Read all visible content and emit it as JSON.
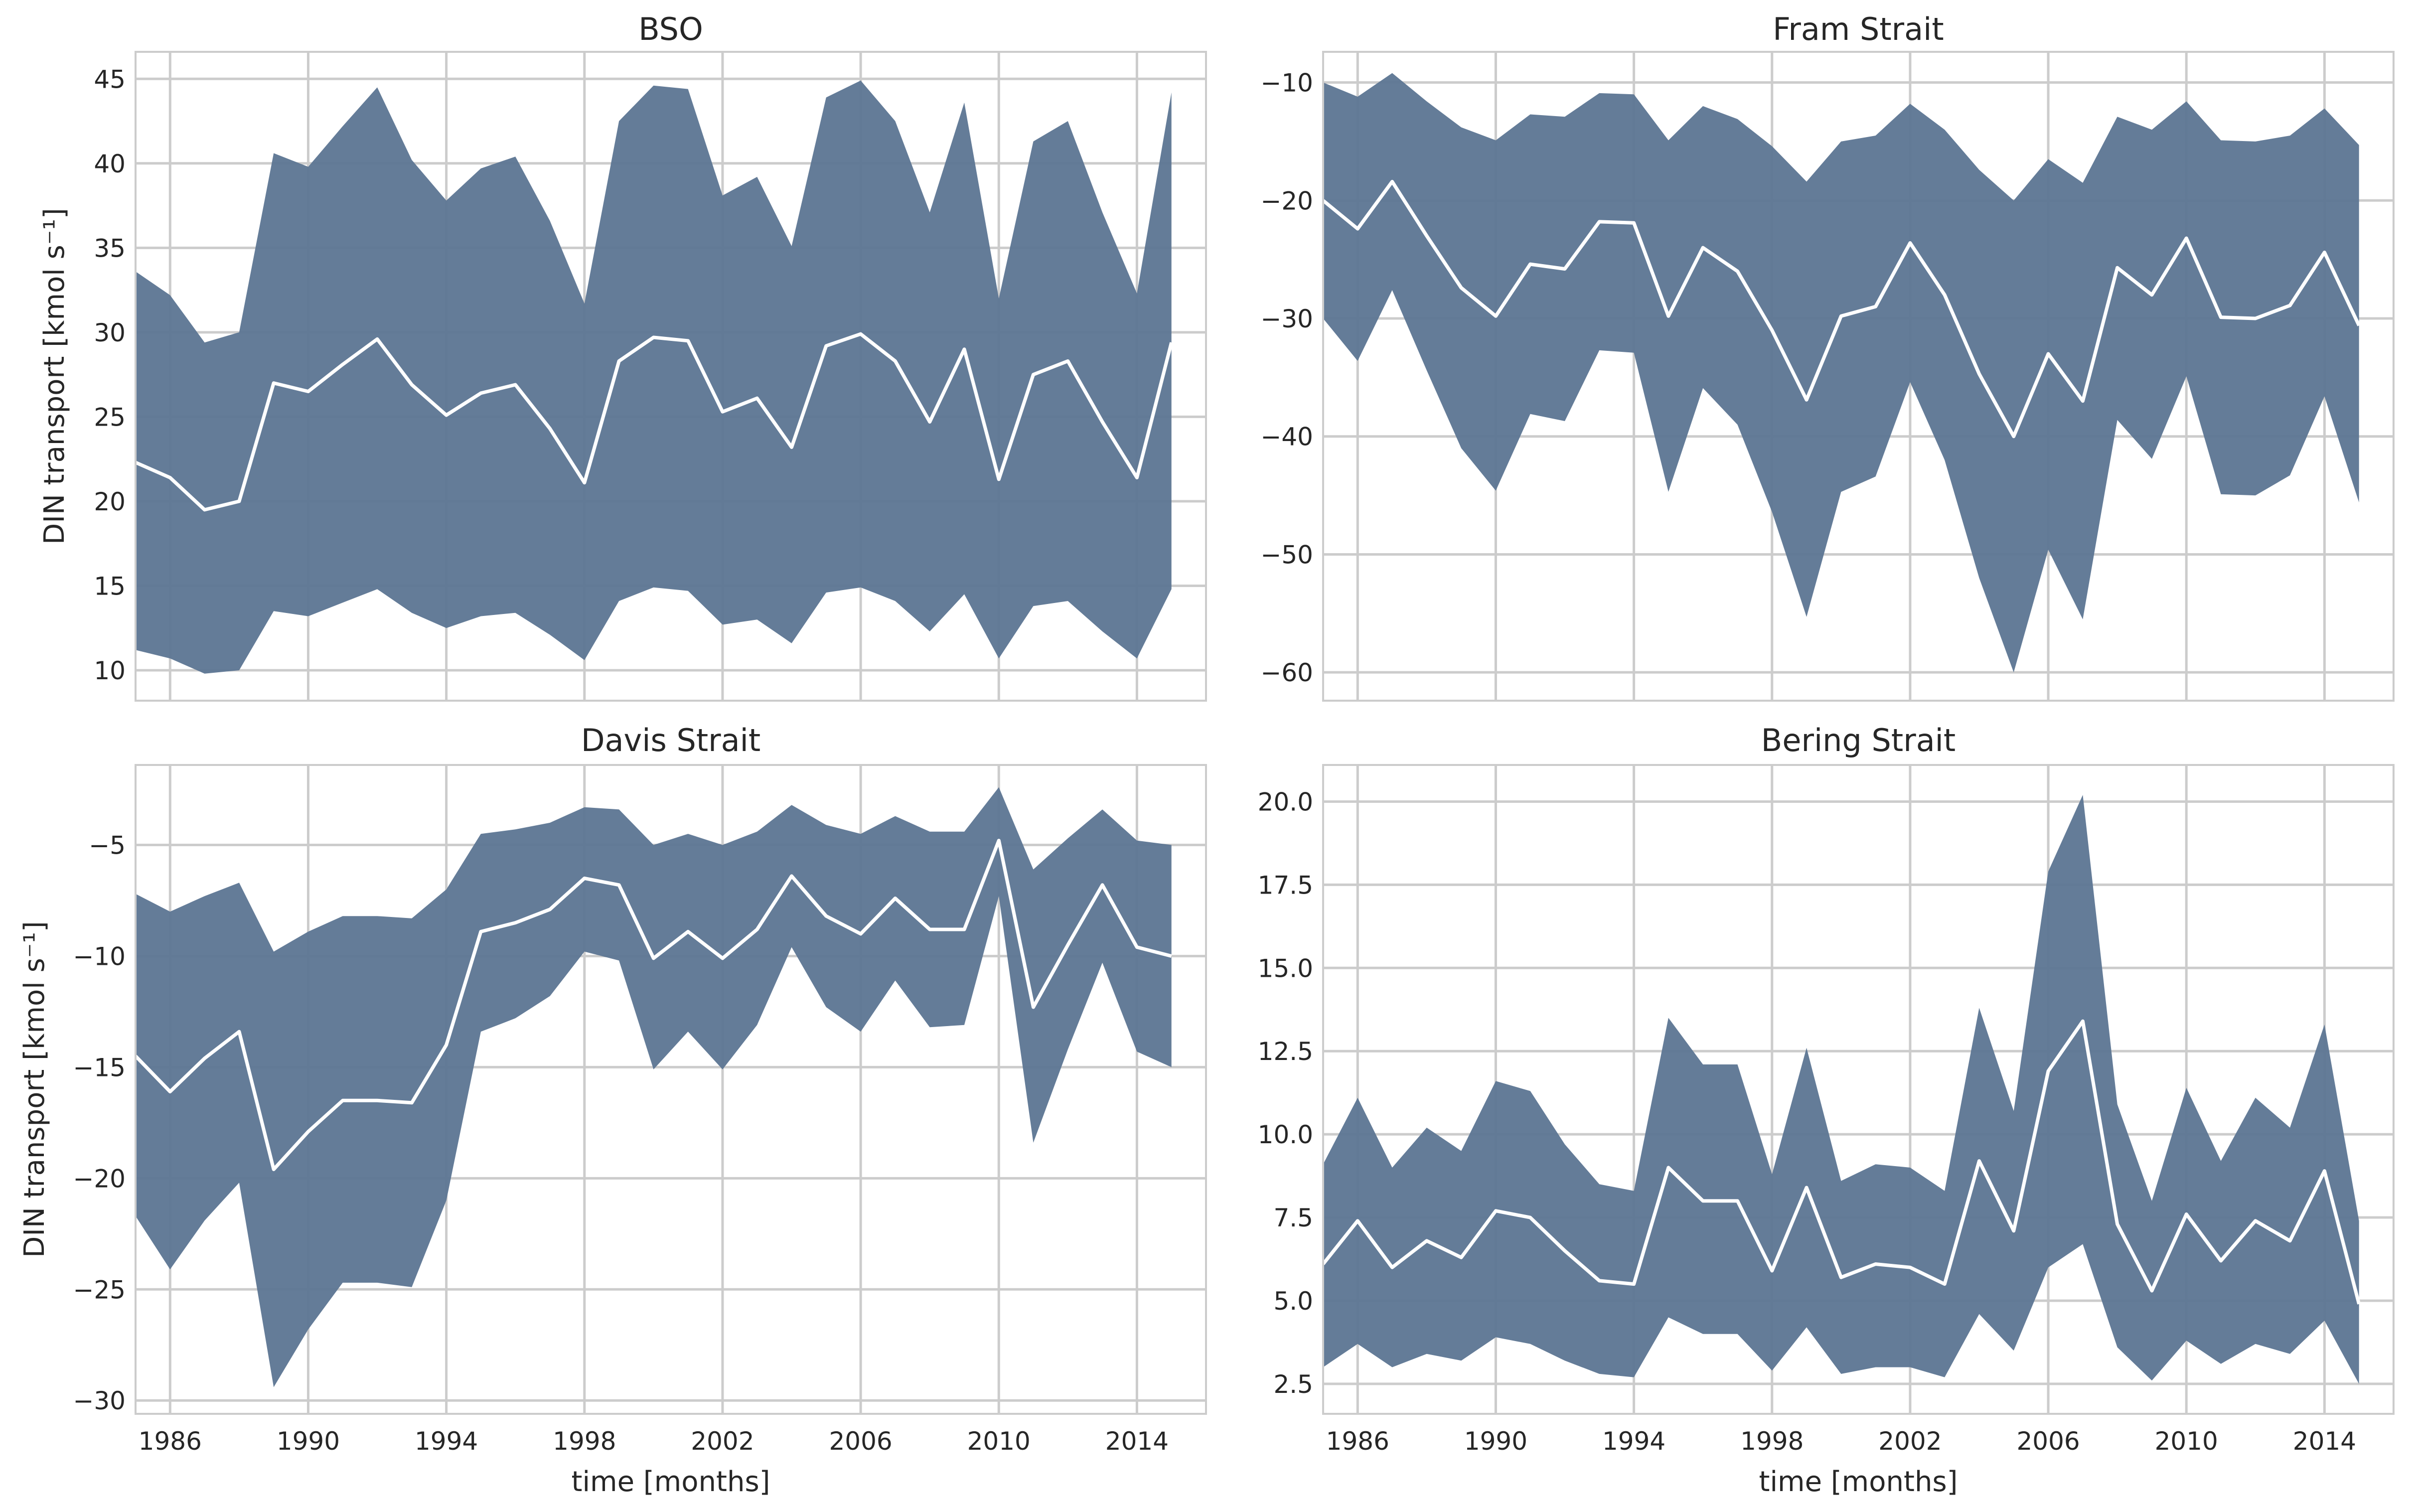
{
  "figure": {
    "background_color": "#ffffff",
    "panel_background_color": "#ffffff",
    "grid_color": "#cccccc",
    "band_color": "#5c7592",
    "mean_line_color": "#ffffff"
  },
  "chart_data": [
    {
      "type": "area",
      "title": "BSO",
      "xlabel": "",
      "ylabel": "DIN transport [kmol s⁻¹]",
      "grid": true,
      "xlim": [
        1985,
        2016
      ],
      "ylim": [
        8.2,
        46.6
      ],
      "xticks": [
        1986,
        1990,
        1994,
        1998,
        2002,
        2006,
        2010,
        2014
      ],
      "yticks": [
        10,
        15,
        20,
        25,
        30,
        35,
        40,
        45
      ],
      "ytick_labels": [
        "10",
        "15",
        "20",
        "25",
        "30",
        "35",
        "40",
        "45"
      ],
      "x": [
        1985,
        1986,
        1987,
        1988,
        1989,
        1990,
        1991,
        1992,
        1993,
        1994,
        1995,
        1996,
        1997,
        1998,
        1999,
        2000,
        2001,
        2002,
        2003,
        2004,
        2005,
        2006,
        2007,
        2008,
        2009,
        2010,
        2011,
        2012,
        2013,
        2014,
        2015
      ],
      "series": [
        {
          "role": "upper",
          "values": [
            33.6,
            32.2,
            29.4,
            30.0,
            40.6,
            39.8,
            42.2,
            44.5,
            40.2,
            37.8,
            39.7,
            40.4,
            36.6,
            31.7,
            42.5,
            44.6,
            44.4,
            38.1,
            39.2,
            35.1,
            43.9,
            44.9,
            42.5,
            37.1,
            43.6,
            32.0,
            41.3,
            42.5,
            37.1,
            32.3,
            44.2
          ]
        },
        {
          "role": "mean",
          "values": [
            22.3,
            21.4,
            19.5,
            20.0,
            27.0,
            26.5,
            28.1,
            29.6,
            26.9,
            25.1,
            26.4,
            26.9,
            24.3,
            21.1,
            28.3,
            29.7,
            29.5,
            25.3,
            26.1,
            23.2,
            29.2,
            29.9,
            28.3,
            24.7,
            29.0,
            21.3,
            27.5,
            28.3,
            24.7,
            21.4,
            29.4
          ]
        },
        {
          "role": "lower",
          "values": [
            11.2,
            10.7,
            9.8,
            10.0,
            13.5,
            13.2,
            14.0,
            14.8,
            13.4,
            12.5,
            13.2,
            13.4,
            12.1,
            10.6,
            14.1,
            14.9,
            14.7,
            12.7,
            13.0,
            11.6,
            14.6,
            14.9,
            14.1,
            12.3,
            14.5,
            10.7,
            13.8,
            14.1,
            12.3,
            10.7,
            14.8
          ]
        }
      ]
    },
    {
      "type": "area",
      "title": "Fram Strait",
      "xlabel": "",
      "ylabel": "",
      "grid": true,
      "xlim": [
        1985,
        2016
      ],
      "ylim": [
        -62.4,
        -7.4
      ],
      "xticks": [
        1986,
        1990,
        1994,
        1998,
        2002,
        2006,
        2010,
        2014
      ],
      "yticks": [
        -60,
        -50,
        -40,
        -30,
        -20,
        -10
      ],
      "ytick_labels": [
        "−60",
        "−50",
        "−40",
        "−30",
        "−20",
        "−10"
      ],
      "x": [
        1985,
        1986,
        1987,
        1988,
        1989,
        1990,
        1991,
        1992,
        1993,
        1994,
        1995,
        1996,
        1997,
        1998,
        1999,
        2000,
        2001,
        2002,
        2003,
        2004,
        2005,
        2006,
        2007,
        2008,
        2009,
        2010,
        2011,
        2012,
        2013,
        2014,
        2015
      ],
      "series": [
        {
          "role": "upper",
          "values": [
            -10.0,
            -11.2,
            -9.2,
            -11.6,
            -13.8,
            -14.9,
            -12.7,
            -12.9,
            -10.9,
            -11.0,
            -14.9,
            -12.0,
            -13.1,
            -15.4,
            -18.4,
            -15.0,
            -14.5,
            -11.8,
            -14.0,
            -17.4,
            -20.0,
            -16.5,
            -18.5,
            -12.9,
            -14.0,
            -11.6,
            -14.9,
            -15.0,
            -14.5,
            -12.2,
            -15.3
          ]
        },
        {
          "role": "mean",
          "values": [
            -20.0,
            -22.4,
            -18.4,
            -23.0,
            -27.4,
            -29.8,
            -25.4,
            -25.8,
            -21.8,
            -21.9,
            -29.8,
            -24.0,
            -26.0,
            -31.0,
            -36.9,
            -29.8,
            -29.0,
            -23.6,
            -28.0,
            -34.7,
            -40.0,
            -33.0,
            -37.0,
            -25.7,
            -28.0,
            -23.2,
            -29.9,
            -30.0,
            -28.9,
            -24.4,
            -30.6
          ]
        },
        {
          "role": "lower",
          "values": [
            -30.0,
            -33.6,
            -27.6,
            -34.4,
            -41.0,
            -44.6,
            -38.1,
            -38.7,
            -32.7,
            -32.9,
            -44.7,
            -35.9,
            -39.0,
            -46.4,
            -55.3,
            -44.7,
            -43.4,
            -35.4,
            -42.0,
            -52.0,
            -60.0,
            -49.6,
            -55.5,
            -38.6,
            -41.9,
            -34.9,
            -44.9,
            -45.0,
            -43.3,
            -36.6,
            -45.6
          ]
        }
      ]
    },
    {
      "type": "area",
      "title": "Davis Strait",
      "xlabel": "time [months]",
      "ylabel": "DIN transport [kmol s⁻¹]",
      "grid": true,
      "xlim": [
        1985,
        2016
      ],
      "ylim": [
        -30.6,
        -1.4
      ],
      "xticks": [
        1986,
        1990,
        1994,
        1998,
        2002,
        2006,
        2010,
        2014
      ],
      "xtick_labels": [
        "1986",
        "1990",
        "1994",
        "1998",
        "2002",
        "2006",
        "2010",
        "2014"
      ],
      "yticks": [
        -30,
        -25,
        -20,
        -15,
        -10,
        -5
      ],
      "ytick_labels": [
        "−30",
        "−25",
        "−20",
        "−15",
        "−10",
        "−5"
      ],
      "x": [
        1985,
        1986,
        1987,
        1988,
        1989,
        1990,
        1991,
        1992,
        1993,
        1994,
        1995,
        1996,
        1997,
        1998,
        1999,
        2000,
        2001,
        2002,
        2003,
        2004,
        2005,
        2006,
        2007,
        2008,
        2009,
        2010,
        2011,
        2012,
        2013,
        2014,
        2015
      ],
      "series": [
        {
          "role": "upper",
          "values": [
            -7.2,
            -8.0,
            -7.3,
            -6.7,
            -9.8,
            -8.9,
            -8.2,
            -8.2,
            -8.3,
            -7.0,
            -4.5,
            -4.3,
            -4.0,
            -3.3,
            -3.4,
            -5.0,
            -4.5,
            -5.0,
            -4.4,
            -3.2,
            -4.1,
            -4.5,
            -3.7,
            -4.4,
            -4.4,
            -2.4,
            -6.1,
            -4.7,
            -3.4,
            -4.8,
            -5.0
          ]
        },
        {
          "role": "mean",
          "values": [
            -14.5,
            -16.1,
            -14.6,
            -13.4,
            -19.6,
            -17.9,
            -16.5,
            -16.5,
            -16.6,
            -14.0,
            -8.9,
            -8.5,
            -7.9,
            -6.5,
            -6.8,
            -10.1,
            -8.9,
            -10.1,
            -8.8,
            -6.4,
            -8.2,
            -9.0,
            -7.4,
            -8.8,
            -8.8,
            -4.8,
            -12.3,
            -9.5,
            -6.8,
            -9.6,
            -10.0
          ]
        },
        {
          "role": "lower",
          "values": [
            -21.7,
            -24.1,
            -21.9,
            -20.2,
            -29.4,
            -26.8,
            -24.7,
            -24.7,
            -24.9,
            -21.0,
            -13.4,
            -12.8,
            -11.8,
            -9.8,
            -10.2,
            -15.1,
            -13.4,
            -15.1,
            -13.1,
            -9.6,
            -12.3,
            -13.4,
            -11.1,
            -13.2,
            -13.1,
            -7.3,
            -18.4,
            -14.2,
            -10.3,
            -14.3,
            -15.0
          ]
        }
      ]
    },
    {
      "type": "area",
      "title": "Bering Strait",
      "xlabel": "time [months]",
      "ylabel": "",
      "grid": true,
      "xlim": [
        1985,
        2016
      ],
      "ylim": [
        1.6,
        21.1
      ],
      "xticks": [
        1986,
        1990,
        1994,
        1998,
        2002,
        2006,
        2010,
        2014
      ],
      "xtick_labels": [
        "1986",
        "1990",
        "1994",
        "1998",
        "2002",
        "2006",
        "2010",
        "2014"
      ],
      "yticks": [
        2.5,
        5.0,
        7.5,
        10.0,
        12.5,
        15.0,
        17.5,
        20.0
      ],
      "ytick_labels": [
        "2.5",
        "5.0",
        "7.5",
        "10.0",
        "12.5",
        "15.0",
        "17.5",
        "20.0"
      ],
      "x": [
        1985,
        1986,
        1987,
        1988,
        1989,
        1990,
        1991,
        1992,
        1993,
        1994,
        1995,
        1996,
        1997,
        1998,
        1999,
        2000,
        2001,
        2002,
        2003,
        2004,
        2005,
        2006,
        2007,
        2008,
        2009,
        2010,
        2011,
        2012,
        2013,
        2014,
        2015
      ],
      "series": [
        {
          "role": "upper",
          "values": [
            9.1,
            11.1,
            9.0,
            10.2,
            9.5,
            11.6,
            11.3,
            9.7,
            8.5,
            8.3,
            13.5,
            12.1,
            12.1,
            8.8,
            12.6,
            8.6,
            9.1,
            9.0,
            8.3,
            13.8,
            10.7,
            17.9,
            20.2,
            10.9,
            8.0,
            11.4,
            9.2,
            11.1,
            10.2,
            13.3,
            7.4
          ]
        },
        {
          "role": "mean",
          "values": [
            6.1,
            7.4,
            6.0,
            6.8,
            6.3,
            7.7,
            7.5,
            6.5,
            5.6,
            5.5,
            9.0,
            8.0,
            8.0,
            5.9,
            8.4,
            5.7,
            6.1,
            6.0,
            5.5,
            9.2,
            7.1,
            11.9,
            13.4,
            7.3,
            5.3,
            7.6,
            6.2,
            7.4,
            6.8,
            8.9,
            4.9
          ]
        },
        {
          "role": "lower",
          "values": [
            3.0,
            3.7,
            3.0,
            3.4,
            3.2,
            3.9,
            3.7,
            3.2,
            2.8,
            2.7,
            4.5,
            4.0,
            4.0,
            2.9,
            4.2,
            2.8,
            3.0,
            3.0,
            2.7,
            4.6,
            3.5,
            6.0,
            6.7,
            3.6,
            2.6,
            3.8,
            3.1,
            3.7,
            3.4,
            4.4,
            2.5
          ]
        }
      ]
    }
  ]
}
